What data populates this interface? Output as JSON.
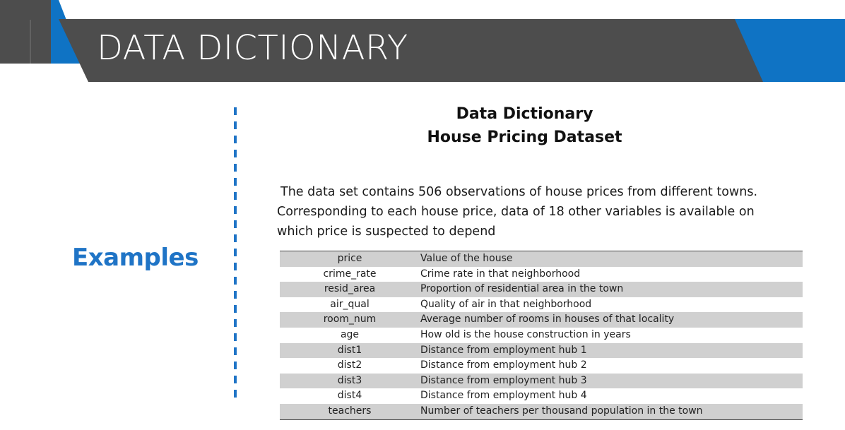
{
  "slide": {
    "title": "DATA DICTIONARY",
    "side_heading": "Examples",
    "colors": {
      "header_gray": "#4d4d4d",
      "accent_blue": "#0f73c4",
      "heading_blue": "#1f74c6",
      "row_shade": "#d0d0d0"
    }
  },
  "dictionary": {
    "title_line1": "Data Dictionary",
    "title_line2": "House Pricing Dataset",
    "description_lines": [
      "The data set contains 506 observations of house prices from different towns.",
      "Corresponding to each house price, data of 18 other variables is available on",
      "which price is suspected to depend"
    ],
    "variables": [
      {
        "name": "price",
        "description": "Value of the house"
      },
      {
        "name": "crime_rate",
        "description": "Crime rate in that neighborhood"
      },
      {
        "name": "resid_area",
        "description": "Proportion of residential area in the town"
      },
      {
        "name": "air_qual",
        "description": "Quality of air in that neighborhood"
      },
      {
        "name": "room_num",
        "description": "Average number of rooms in houses of that locality"
      },
      {
        "name": "age",
        "description": "How old is the house construction in years"
      },
      {
        "name": "dist1",
        "description": "Distance from employment hub 1"
      },
      {
        "name": "dist2",
        "description": "Distance from employment hub 2"
      },
      {
        "name": "dist3",
        "description": "Distance from employment hub 3"
      },
      {
        "name": "dist4",
        "description": "Distance from employment hub 4"
      },
      {
        "name": "teachers",
        "description": "Number of teachers per thousand population in the town"
      }
    ]
  }
}
